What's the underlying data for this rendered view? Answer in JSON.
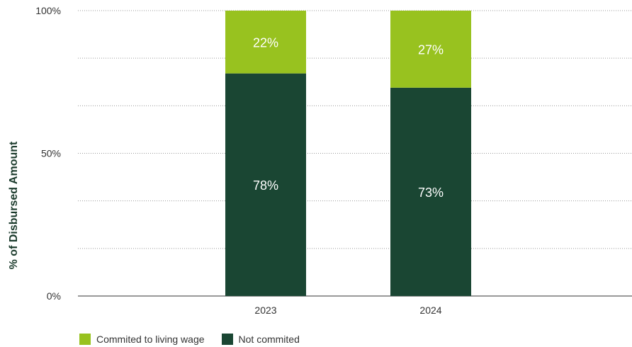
{
  "chart_data": {
    "type": "bar",
    "stacked": true,
    "categories": [
      "2023",
      "2024"
    ],
    "series": [
      {
        "name": "Not commited",
        "values": [
          78,
          73
        ],
        "color": "#1a4633",
        "label_color": "#ffffff"
      },
      {
        "name": "Commited to living wage",
        "values": [
          22,
          27
        ],
        "color": "#98c21f",
        "label_color": "#ffffff"
      }
    ],
    "data_labels": [
      [
        "78%",
        "73%"
      ],
      [
        "22%",
        "27%"
      ]
    ],
    "ylabel": "% of Disbursed Amount",
    "xlabel": "",
    "ylim": [
      0,
      100
    ],
    "y_ticks": [
      {
        "value": 0,
        "label": "0%"
      },
      {
        "value": 50,
        "label": "50%"
      },
      {
        "value": 100,
        "label": "100%"
      }
    ],
    "grid_values": [
      0,
      16.667,
      33.333,
      50,
      66.667,
      83.333,
      100
    ],
    "grid": "dotted horizontal",
    "legend": "bottom-left",
    "legend_order": [
      "Commited to living wage",
      "Not commited"
    ]
  }
}
